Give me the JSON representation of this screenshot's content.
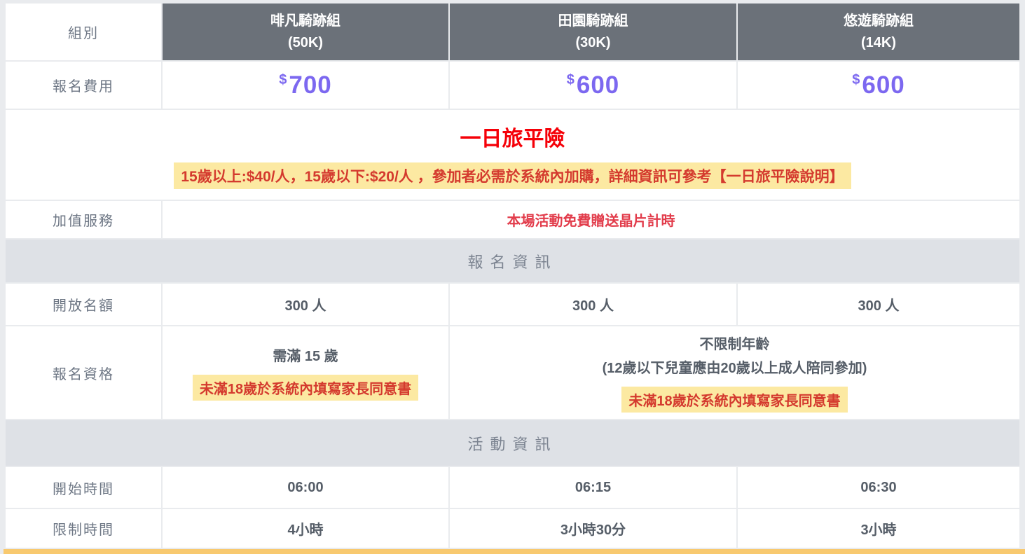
{
  "colors": {
    "page_bg": "#e9ebee",
    "header_bg": "#6b7179",
    "section_bg": "#dee1e6",
    "price_purple": "#7c68f0",
    "title_red": "#f50008",
    "note_red": "#d43a2e",
    "note_highlight_yellow": "#fce9a2",
    "addon_red": "#e23c4b",
    "bottom_bar_yellow": "#f8c96f"
  },
  "header": {
    "label": "組別",
    "groups": [
      {
        "name": "啡凡騎跡組",
        "distance": "(50K)"
      },
      {
        "name": "田園騎跡組",
        "distance": "(30K)"
      },
      {
        "name": "悠遊騎跡組",
        "distance": "(14K)"
      }
    ]
  },
  "fee": {
    "label": "報名費用",
    "currency": "$",
    "values": [
      "700",
      "600",
      "600"
    ]
  },
  "insurance": {
    "title": "一日旅平險",
    "note": "15歲以上:$40/人，15歲以下:$20/人 ，參加者必需於系統內加購，詳細資訊可參考【一日旅平險說明】"
  },
  "addon": {
    "label": "加值服務",
    "value": "本場活動免費贈送晶片計時"
  },
  "sections": {
    "registration": "報名資訊",
    "event": "活動資訊"
  },
  "quota": {
    "label": "開放名額",
    "values": [
      "300 人",
      "300 人",
      "300 人"
    ]
  },
  "eligibility": {
    "label": "報名資格",
    "col_50k": {
      "requirement": "需滿 15 歲",
      "consent_note": "未滿18歲於系統內填寫家長同意書"
    },
    "merged_30k_14k": {
      "line1": "不限制年齡",
      "line2": "(12歲以下兒童應由20歲以上成人陪同參加)",
      "consent_note": "未滿18歲於系統內填寫家長同意書"
    }
  },
  "start_time": {
    "label": "開始時間",
    "values": [
      "06:00",
      "06:15",
      "06:30"
    ]
  },
  "time_limit": {
    "label": "限制時間",
    "values": [
      "4小時",
      "3小時30分",
      "3小時"
    ]
  }
}
